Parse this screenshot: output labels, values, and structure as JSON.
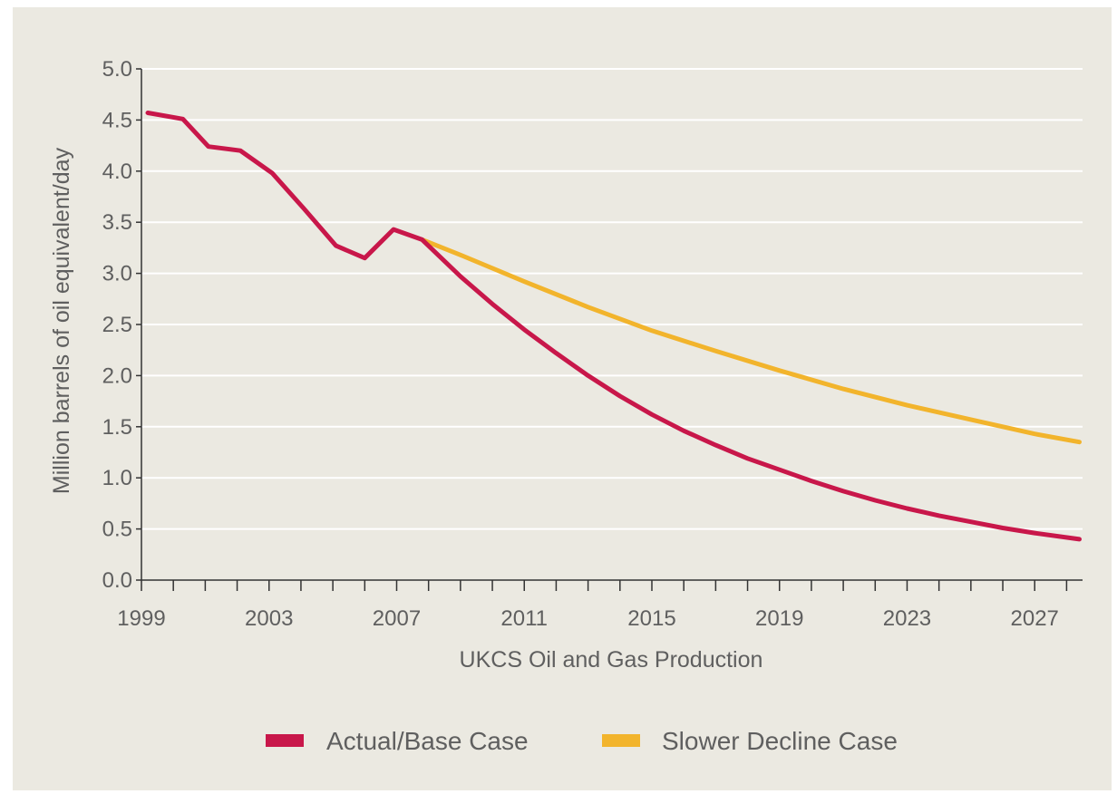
{
  "chart_data": {
    "type": "line",
    "title": "",
    "xlabel": "UKCS Oil and Gas Production",
    "ylabel": "Million barrels of oil equivalent/day",
    "xlim": [
      1999,
      2028.5
    ],
    "ylim": [
      0,
      5
    ],
    "x_ticks": [
      "1999",
      "2003",
      "2007",
      "2011",
      "2015",
      "2019",
      "2023",
      "2027"
    ],
    "y_ticks": [
      "0.0",
      "0.5",
      "1.0",
      "1.5",
      "2.0",
      "2.5",
      "3.0",
      "3.5",
      "4.0",
      "4.5",
      "5.0"
    ],
    "grid": true,
    "legend_position": "bottom",
    "series": [
      {
        "name": "Actual/Base Case",
        "color": "#c8174a",
        "x": [
          1999.2,
          2000.3,
          2001.1,
          2002.1,
          2003.1,
          2004.1,
          2005.1,
          2006.0,
          2006.9,
          2007.8,
          2009.0,
          2010.0,
          2011.0,
          2012.0,
          2013.0,
          2014.0,
          2015.0,
          2016.0,
          2017.0,
          2018.0,
          2019.0,
          2020.0,
          2021.0,
          2022.0,
          2023.0,
          2024.0,
          2025.0,
          2026.0,
          2027.0,
          2028.4
        ],
        "y": [
          4.57,
          4.51,
          4.24,
          4.2,
          3.98,
          3.63,
          3.27,
          3.15,
          3.43,
          3.33,
          2.97,
          2.7,
          2.45,
          2.22,
          2.0,
          1.8,
          1.62,
          1.46,
          1.32,
          1.19,
          1.08,
          0.97,
          0.87,
          0.78,
          0.7,
          0.63,
          0.57,
          0.51,
          0.46,
          0.4
        ]
      },
      {
        "name": "Slower Decline Case",
        "color": "#f2b42c",
        "x": [
          2007.8,
          2009.0,
          2011.0,
          2013.0,
          2015.0,
          2017.0,
          2019.0,
          2021.0,
          2023.0,
          2025.0,
          2027.0,
          2028.4
        ],
        "y": [
          3.33,
          3.18,
          2.92,
          2.67,
          2.44,
          2.24,
          2.05,
          1.87,
          1.71,
          1.57,
          1.43,
          1.35
        ]
      }
    ]
  }
}
